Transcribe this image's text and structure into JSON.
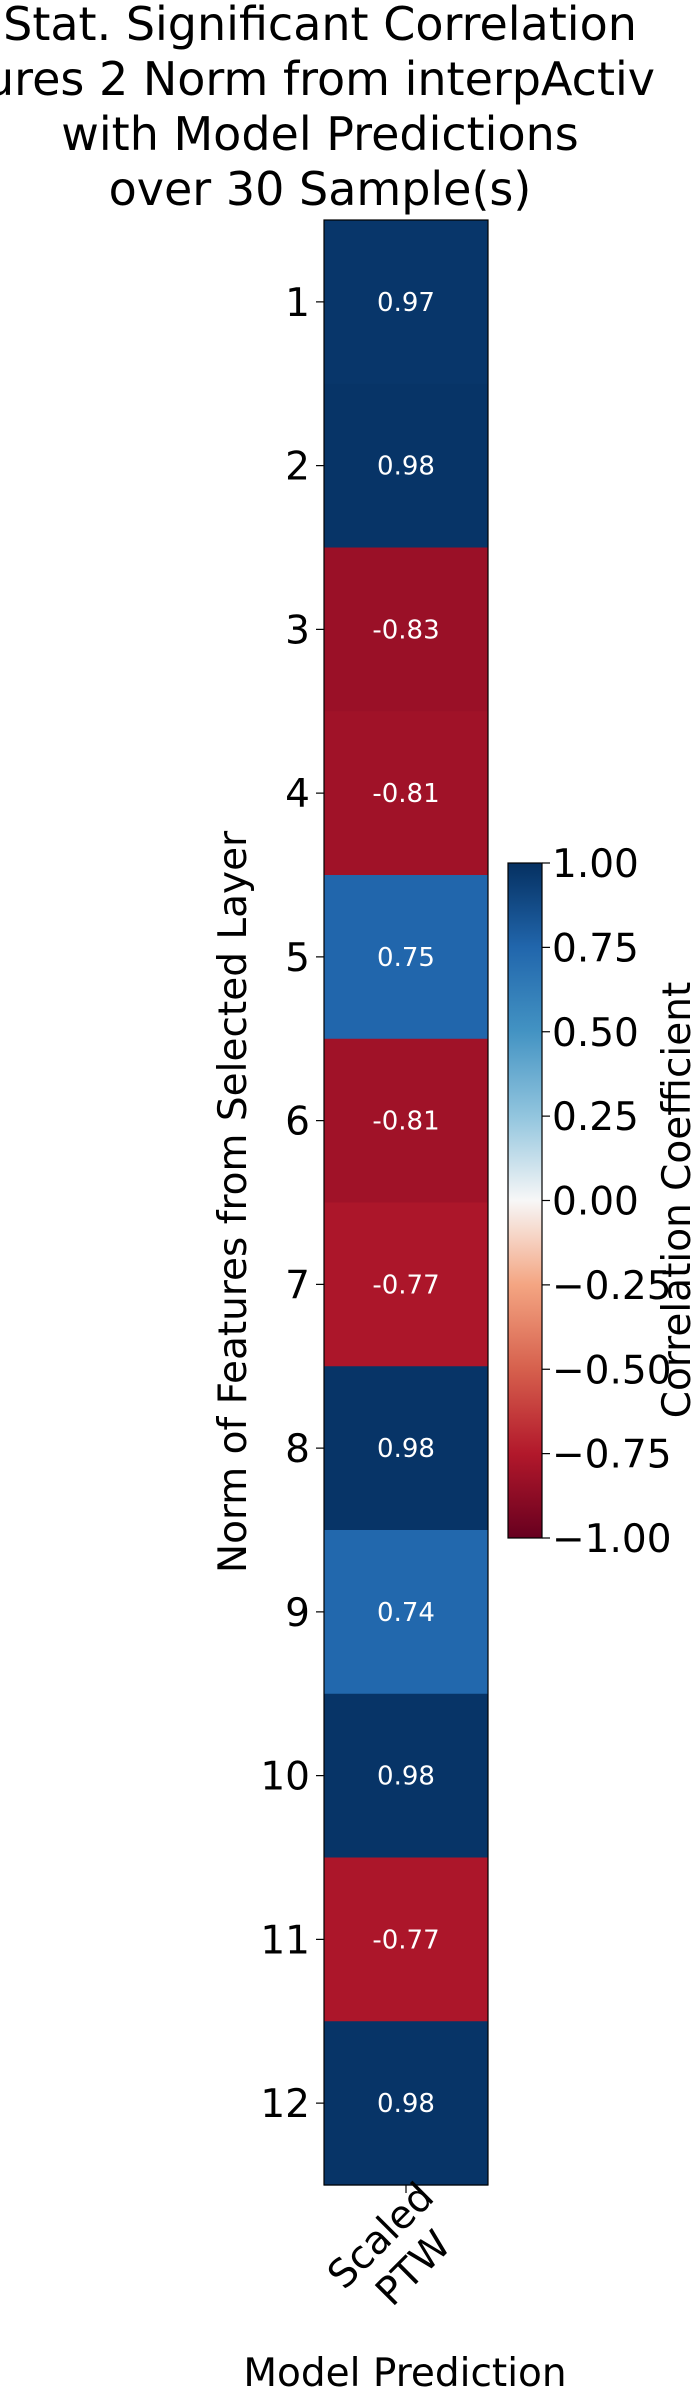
{
  "chart_data": {
    "type": "heatmap",
    "title_lines": [
      "Stat. Significant Correlation",
      "ures 2 Norm from interpActiv",
      "with Model Predictions",
      "over 30  Sample(s)"
    ],
    "xlabel": "Model Prediction",
    "ylabel": "Norm of Features from Selected Layer",
    "x_categories": [
      "Scaled PTW"
    ],
    "x_tick_lines": [
      "Scaled",
      "PTW"
    ],
    "y_categories": [
      "1",
      "2",
      "3",
      "4",
      "5",
      "6",
      "7",
      "8",
      "9",
      "10",
      "11",
      "12"
    ],
    "values": [
      0.97,
      0.98,
      -0.83,
      -0.81,
      0.75,
      -0.81,
      -0.77,
      0.98,
      0.74,
      0.98,
      -0.77,
      0.98
    ],
    "cell_labels": [
      "0.97",
      "0.98",
      "-0.83",
      "-0.81",
      "0.75",
      "-0.81",
      "-0.77",
      "0.98",
      "0.74",
      "0.98",
      "-0.77",
      "0.98"
    ],
    "colormap": "RdBu",
    "colorbar": {
      "label": "Correlation Coefficient",
      "range": [
        -1.0,
        1.0
      ],
      "ticks": [
        1.0,
        0.75,
        0.5,
        0.25,
        0.0,
        -0.25,
        -0.5,
        -0.75,
        -1.0
      ],
      "tick_labels": [
        "1.00",
        "0.75",
        "0.50",
        "0.25",
        "0.00",
        "−0.25",
        "−0.50",
        "−0.75",
        "−1.00"
      ]
    },
    "grid": false
  }
}
